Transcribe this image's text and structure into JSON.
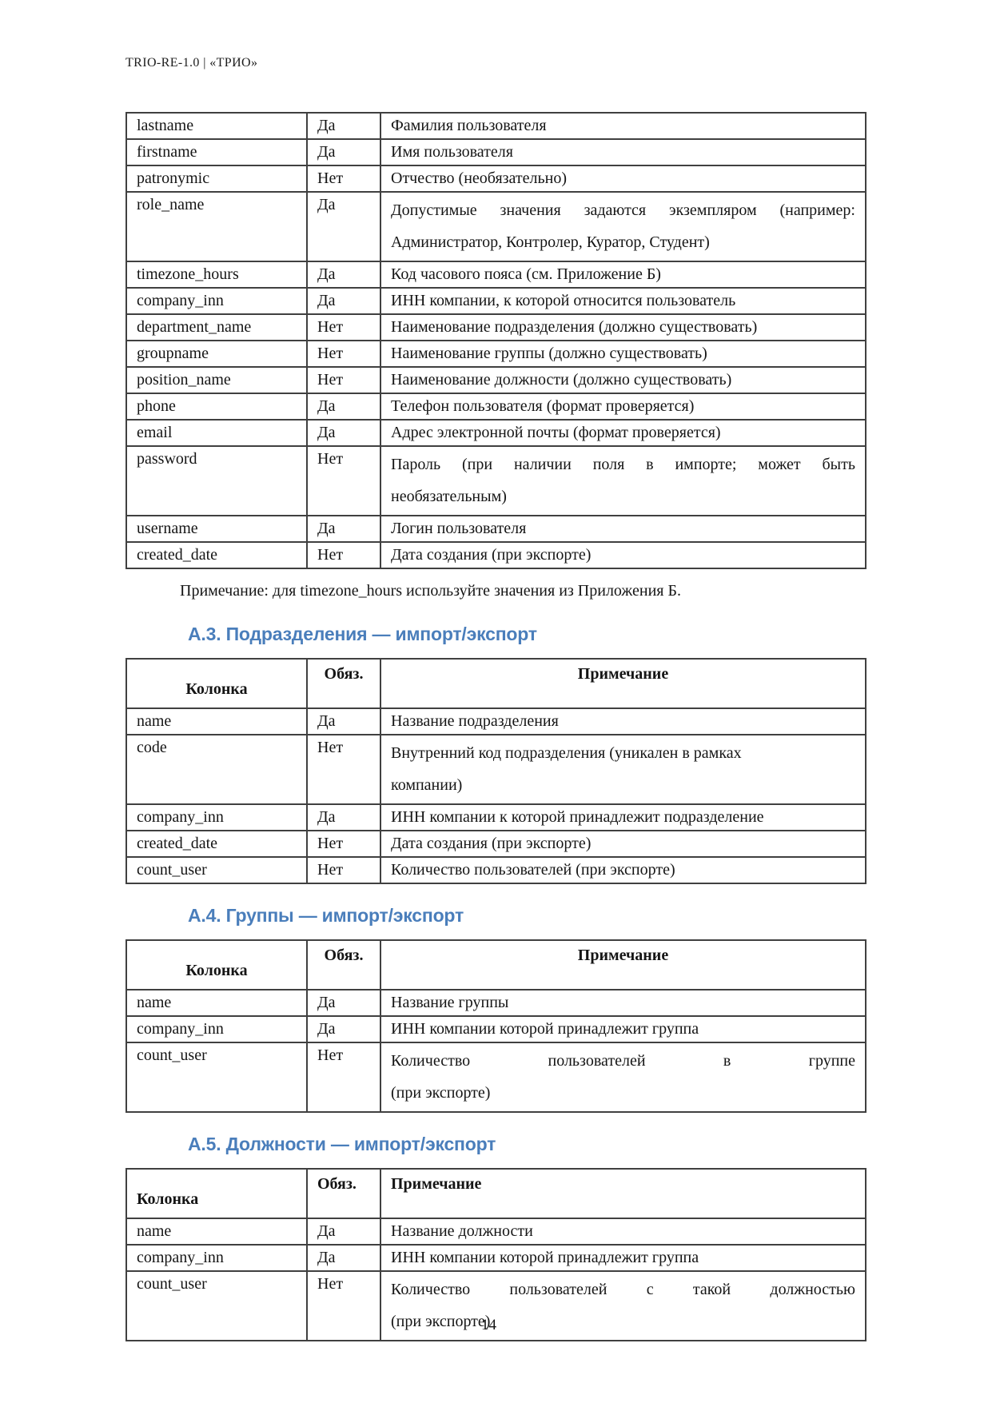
{
  "page": {
    "running_header": "TRIO-RE-1.0 | «ТРИО»",
    "note": "Примечание: для timezone_hours используйте значения из Приложения Б.",
    "page_number": "14",
    "accent_color": "#4a7ebb"
  },
  "sections": [
    {
      "heading": "А.3. Подразделения — импорт/экспорт"
    },
    {
      "heading": "А.4. Группы — импорт/экспорт"
    },
    {
      "heading": "А.5. Должности — импорт/экспорт"
    }
  ],
  "tables": [
    {
      "name": "users-columns-continued",
      "rows": [
        {
          "cells": [
            "lastname",
            "Да",
            "Фамилия пользователя"
          ]
        },
        {
          "cells": [
            "firstname",
            "Да",
            "Имя пользователя"
          ]
        },
        {
          "cells": [
            "patronymic",
            "Нет",
            "Отчество (необязательно)"
          ]
        },
        {
          "cells": [
            "role_name",
            "Да",
            [
              "Допустимые значения задаются экземпляром (например:",
              "Администратор, Контролер, Куратор, Студент)"
            ]
          ],
          "justify": true
        },
        {
          "cells": [
            "timezone_hours",
            "Да",
            "Код часового пояса (см. Приложение Б)"
          ]
        },
        {
          "cells": [
            "company_inn",
            "Да",
            "ИНН компании, к которой относится пользователь"
          ]
        },
        {
          "cells": [
            "department_name",
            "Нет",
            "Наименование подразделения (должно существовать)"
          ]
        },
        {
          "cells": [
            "groupname",
            "Нет",
            "Наименование группы (должно существовать)"
          ]
        },
        {
          "cells": [
            "position_name",
            "Нет",
            "Наименование должности (должно существовать)"
          ]
        },
        {
          "cells": [
            "phone",
            "Да",
            "Телефон пользователя (формат проверяется)"
          ]
        },
        {
          "cells": [
            "email",
            "Да",
            "Адрес электронной почты (формат проверяется)"
          ]
        },
        {
          "cells": [
            "password",
            "Нет",
            [
              "Пароль (при наличии поля в импорте; может быть",
              "необязательным)"
            ]
          ],
          "justify": true
        },
        {
          "cells": [
            "username",
            "Да",
            "Логин пользователя"
          ]
        },
        {
          "cells": [
            "created_date",
            "Нет",
            "Дата создания (при экспорте)"
          ]
        }
      ]
    },
    {
      "name": "departments-columns",
      "header": {
        "cells": [
          "Колонка",
          "Обяз.",
          "Примечание"
        ],
        "align": "center"
      },
      "rows": [
        {
          "cells": [
            "name",
            "Да",
            "Название подразделения"
          ]
        },
        {
          "cells": [
            "code",
            "Нет",
            [
              "Внутренний код подразделения (уникален в рамках",
              "компании)"
            ]
          ]
        },
        {
          "cells": [
            "company_inn",
            "Да",
            "ИНН компании к которой принадлежит подразделение"
          ]
        },
        {
          "cells": [
            "created_date",
            "Нет",
            "Дата создания (при экспорте)"
          ]
        },
        {
          "cells": [
            "count_user",
            "Нет",
            "Количество пользователей (при экспорте)"
          ]
        }
      ]
    },
    {
      "name": "groups-columns",
      "header": {
        "cells": [
          "Колонка",
          "Обяз.",
          "Примечание"
        ],
        "align": "center"
      },
      "rows": [
        {
          "cells": [
            "name",
            "Да",
            "Название группы"
          ]
        },
        {
          "cells": [
            "company_inn",
            "Да",
            "ИНН компании которой принадлежит группа"
          ]
        },
        {
          "cells": [
            "count_user",
            "Нет",
            [
              "Количество пользователей в группе",
              "(при экспорте)"
            ]
          ],
          "justify": true
        }
      ]
    },
    {
      "name": "positions-columns",
      "header": {
        "cells": [
          "Колонка",
          "Обяз.",
          "Примечание"
        ],
        "align": "left"
      },
      "rows": [
        {
          "cells": [
            "name",
            "Да",
            "Название должности"
          ]
        },
        {
          "cells": [
            "company_inn",
            "Да",
            "ИНН компании которой принадлежит группа"
          ]
        },
        {
          "cells": [
            "count_user",
            "Нет",
            [
              "Количество пользователей с такой должностью",
              "(при экспорте)"
            ]
          ],
          "justify": true
        }
      ]
    }
  ]
}
